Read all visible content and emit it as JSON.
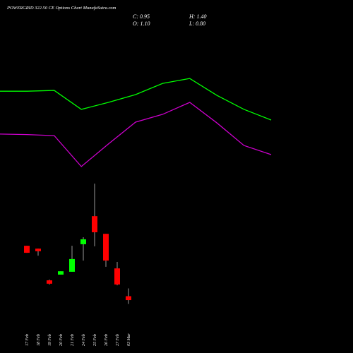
{
  "chart_data": {
    "type": "candlestick",
    "title": "POWERGRID 322.50 CE Options Chart MunafaSutra.com",
    "header": [
      "C: 0.95",
      "H: 1.40",
      "O: 1.10",
      "L: 0.80"
    ],
    "categories": [
      "17 Feb",
      "18 Feb",
      "19 Feb",
      "20 Feb",
      "21 Feb",
      "24 Feb",
      "25 Feb",
      "26 Feb",
      "27 Feb",
      "03 Mar"
    ],
    "open": [
      3.04,
      2.93,
      1.71,
      1.93,
      2.04,
      3.1,
      4.18,
      3.5,
      2.17,
      1.1
    ],
    "high": [
      3.04,
      2.93,
      1.74,
      2.06,
      3.04,
      3.37,
      5.43,
      3.5,
      2.42,
      1.4
    ],
    "low": [
      2.77,
      2.66,
      1.55,
      1.93,
      2.04,
      2.47,
      3.02,
      2.23,
      1.52,
      0.8
    ],
    "close": [
      2.77,
      2.83,
      1.58,
      2.06,
      2.53,
      3.29,
      3.56,
      2.47,
      1.55,
      0.95
    ],
    "up_color": "#00ff00",
    "down_color": "#ff0000",
    "ylim": [
      0,
      12.5
    ],
    "lines": {
      "x": [
        0,
        1,
        2,
        3,
        4,
        5,
        6,
        7,
        8,
        9,
        10
      ],
      "xlim": [
        0,
        10
      ],
      "series": [
        {
          "color": "#00ff00",
          "values": [
            8.99,
            8.99,
            9.02,
            8.29,
            8.56,
            8.86,
            9.29,
            9.48,
            8.83,
            8.29,
            7.88
          ]
        },
        {
          "color": "#cc00cc",
          "values": [
            7.34,
            7.32,
            7.28,
            6.09,
            6.96,
            7.8,
            8.1,
            8.56,
            7.77,
            6.9,
            6.55
          ]
        }
      ]
    }
  }
}
